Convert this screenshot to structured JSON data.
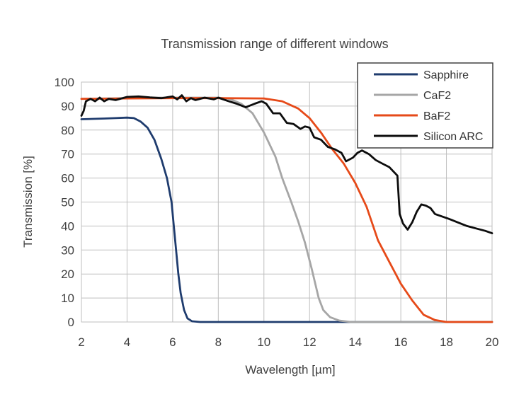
{
  "chart_data": {
    "type": "line",
    "title": "Transmission range of different windows",
    "xlabel": "Wavelength [µm]",
    "ylabel": "Transmission [%]",
    "xlim": [
      2,
      20
    ],
    "ylim": [
      0,
      100
    ],
    "xticks": [
      2,
      4,
      6,
      8,
      10,
      12,
      14,
      16,
      18,
      20
    ],
    "yticks": [
      0,
      10,
      20,
      30,
      40,
      50,
      60,
      70,
      80,
      90,
      100
    ],
    "grid": true,
    "legend_position": "top-right",
    "series": [
      {
        "name": "Sapphire",
        "color": "#1f3c6e",
        "points": [
          [
            2,
            84.5
          ],
          [
            3,
            84.8
          ],
          [
            3.5,
            85
          ],
          [
            4,
            85.2
          ],
          [
            4.3,
            85
          ],
          [
            4.6,
            83.5
          ],
          [
            4.9,
            81
          ],
          [
            5.2,
            76
          ],
          [
            5.5,
            68
          ],
          [
            5.75,
            60
          ],
          [
            5.95,
            50
          ],
          [
            6.05,
            40
          ],
          [
            6.15,
            30
          ],
          [
            6.25,
            20
          ],
          [
            6.35,
            12
          ],
          [
            6.5,
            5
          ],
          [
            6.65,
            1.5
          ],
          [
            6.85,
            0.3
          ],
          [
            7.2,
            0
          ],
          [
            20,
            0
          ]
        ]
      },
      {
        "name": "CaF2",
        "color": "#a6a6a6",
        "points": [
          [
            2,
            93
          ],
          [
            3,
            93.2
          ],
          [
            4,
            93.3
          ],
          [
            5,
            93.5
          ],
          [
            6,
            93.5
          ],
          [
            7,
            93.5
          ],
          [
            8,
            93.5
          ],
          [
            8.5,
            93
          ],
          [
            9,
            91
          ],
          [
            9.5,
            87
          ],
          [
            10,
            79
          ],
          [
            10.5,
            69
          ],
          [
            10.8,
            60
          ],
          [
            11.2,
            50
          ],
          [
            11.5,
            42
          ],
          [
            11.8,
            33
          ],
          [
            12.1,
            22
          ],
          [
            12.4,
            10
          ],
          [
            12.6,
            5
          ],
          [
            12.9,
            2
          ],
          [
            13.3,
            0.6
          ],
          [
            13.8,
            0
          ],
          [
            20,
            0
          ]
        ]
      },
      {
        "name": "BaF2",
        "color": "#e64a19",
        "points": [
          [
            2,
            93
          ],
          [
            4,
            93.2
          ],
          [
            6,
            93.3
          ],
          [
            8,
            93.3
          ],
          [
            10,
            93.2
          ],
          [
            10.8,
            92
          ],
          [
            11.5,
            89
          ],
          [
            12,
            85
          ],
          [
            12.5,
            79
          ],
          [
            13,
            72
          ],
          [
            13.5,
            66
          ],
          [
            14,
            58
          ],
          [
            14.5,
            48
          ],
          [
            15,
            34
          ],
          [
            15.5,
            25
          ],
          [
            16,
            16
          ],
          [
            16.5,
            9
          ],
          [
            17,
            3
          ],
          [
            17.5,
            0.8
          ],
          [
            18,
            0
          ],
          [
            20,
            0
          ]
        ]
      },
      {
        "name": "Silicon ARC",
        "color": "#0d0d0d",
        "points": [
          [
            2,
            86
          ],
          [
            2.1,
            88
          ],
          [
            2.2,
            92
          ],
          [
            2.4,
            93
          ],
          [
            2.6,
            92
          ],
          [
            2.8,
            93.5
          ],
          [
            3,
            92
          ],
          [
            3.2,
            93
          ],
          [
            3.5,
            92.5
          ],
          [
            4,
            93.8
          ],
          [
            4.5,
            94
          ],
          [
            5,
            93.6
          ],
          [
            5.5,
            93.3
          ],
          [
            6,
            94
          ],
          [
            6.2,
            92.8
          ],
          [
            6.4,
            94.5
          ],
          [
            6.6,
            92
          ],
          [
            6.8,
            93.3
          ],
          [
            7,
            92.5
          ],
          [
            7.4,
            93.5
          ],
          [
            7.8,
            92.8
          ],
          [
            8,
            93.5
          ],
          [
            8.4,
            92.2
          ],
          [
            8.8,
            91
          ],
          [
            9.2,
            89.5
          ],
          [
            9.6,
            91
          ],
          [
            9.9,
            92
          ],
          [
            10.1,
            91
          ],
          [
            10.4,
            87
          ],
          [
            10.7,
            87
          ],
          [
            11,
            83
          ],
          [
            11.3,
            82.5
          ],
          [
            11.6,
            80.5
          ],
          [
            11.8,
            81.5
          ],
          [
            12,
            81
          ],
          [
            12.2,
            77
          ],
          [
            12.5,
            76
          ],
          [
            12.8,
            73
          ],
          [
            13.1,
            72
          ],
          [
            13.4,
            70.5
          ],
          [
            13.6,
            67
          ],
          [
            13.9,
            68.5
          ],
          [
            14.1,
            70.5
          ],
          [
            14.3,
            71.5
          ],
          [
            14.6,
            70
          ],
          [
            14.9,
            67.5
          ],
          [
            15.2,
            66
          ],
          [
            15.5,
            64.5
          ],
          [
            15.7,
            62.5
          ],
          [
            15.85,
            61
          ],
          [
            15.95,
            45
          ],
          [
            16.1,
            41
          ],
          [
            16.3,
            38.5
          ],
          [
            16.5,
            41.5
          ],
          [
            16.7,
            46
          ],
          [
            16.9,
            49
          ],
          [
            17.1,
            48.5
          ],
          [
            17.3,
            47.5
          ],
          [
            17.5,
            45
          ],
          [
            17.8,
            44
          ],
          [
            18.1,
            43
          ],
          [
            18.5,
            41.5
          ],
          [
            18.9,
            40
          ],
          [
            19.3,
            39
          ],
          [
            19.7,
            38
          ],
          [
            20,
            37
          ]
        ]
      }
    ]
  }
}
